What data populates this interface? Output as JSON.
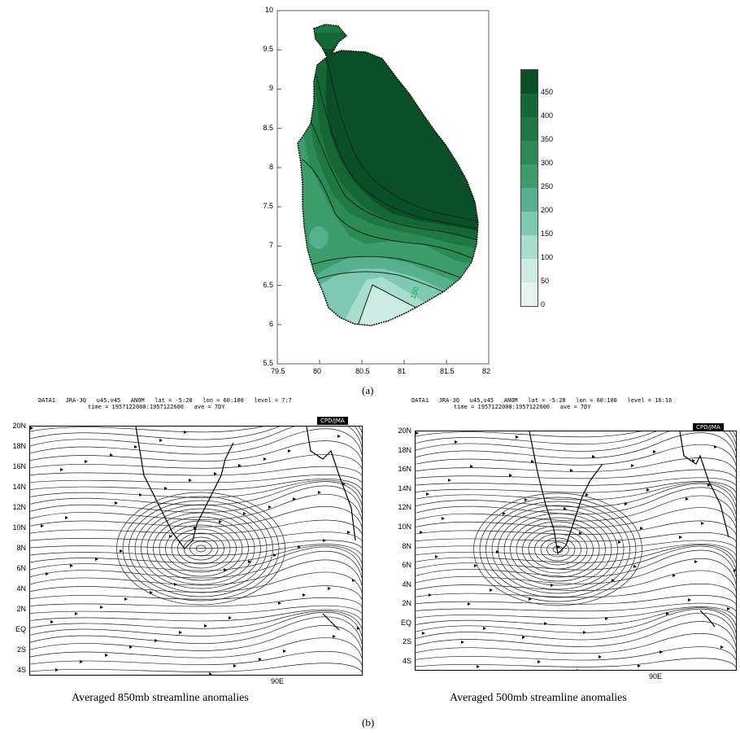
{
  "panel_a": {
    "label": "(a)",
    "x_ticks": [
      "79.5",
      "80",
      "80.5",
      "81",
      "81.5",
      "82"
    ],
    "y_ticks": [
      "5.5",
      "6",
      "6.5",
      "7",
      "7.5",
      "8",
      "8.5",
      "9",
      "9.5",
      "10"
    ],
    "colorbar": {
      "labels": [
        "0",
        "50",
        "100",
        "150",
        "200",
        "250",
        "300",
        "350",
        "400",
        "450"
      ],
      "colors": [
        "#e6f4f0",
        "#cdeae3",
        "#a8dccd",
        "#7fc9b2",
        "#57b08d",
        "#3c9c6c",
        "#2b8a55",
        "#1f7844",
        "#156736",
        "#0b4f28"
      ]
    },
    "contour_label": "150"
  },
  "panel_b": {
    "label": "(b)",
    "left": {
      "header_line1": "DATA1   JRA-3Q   u45,v45   ANOM   lat = -5:20   lon = 60:100   level = 7:7",
      "header_line2": "time = 1957122000:1957122600   ave = 7DY",
      "badge": "CPD/JMA",
      "lat_labels": [
        "20N",
        "18N",
        "16N",
        "14N",
        "12N",
        "10N",
        "8N",
        "6N",
        "4N",
        "2N",
        "EQ",
        "2S",
        "4S"
      ],
      "lon_label": "90E",
      "caption": "Averaged 850mb streamline anomalies"
    },
    "right": {
      "header_line1": "DATA1   JRA-3Q   u45,v45   ANOM   lat = -5:20   lon = 60:100   level = 16:16",
      "header_line2": "time = 1957122000:1957122600   ave = 7DY",
      "badge": "CPD/JMA",
      "lat_labels": [
        "20N",
        "18N",
        "16N",
        "14N",
        "12N",
        "10N",
        "8N",
        "6N",
        "4N",
        "2N",
        "EQ",
        "2S",
        "4S"
      ],
      "lon_label": "90E",
      "caption": "Averaged 500mb streamline anomalies"
    }
  }
}
